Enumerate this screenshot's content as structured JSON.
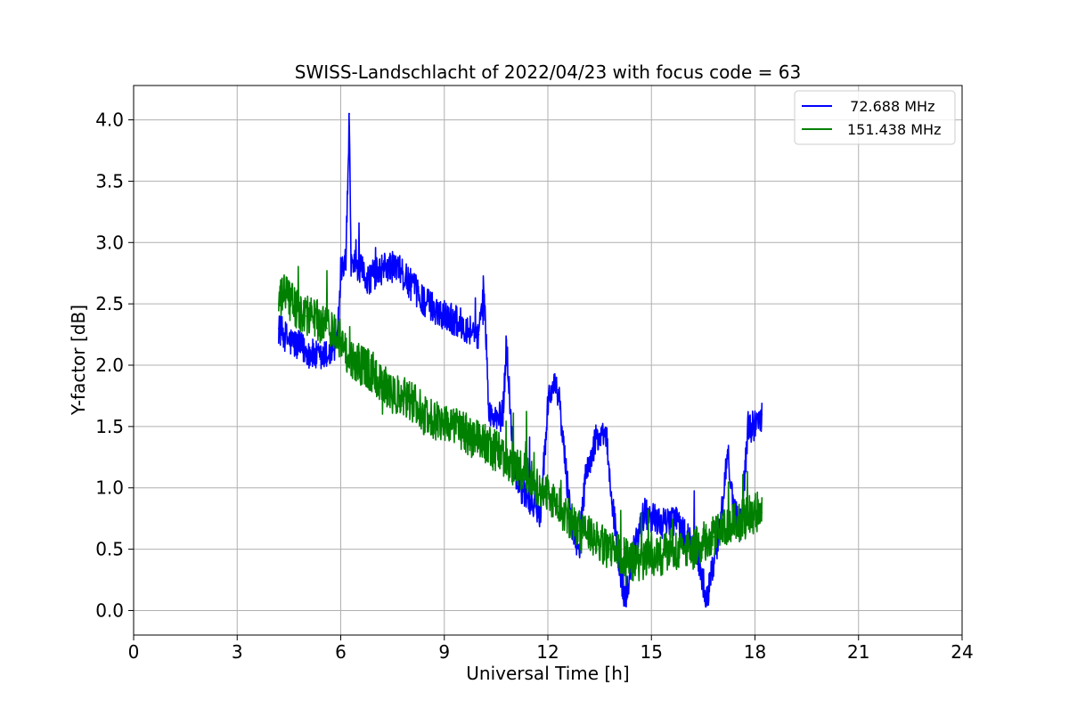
{
  "chart_data": {
    "type": "line",
    "title": "SWISS-Landschlacht of 2022/04/23 with focus code = 63",
    "xlabel": "Universal Time [h]",
    "ylabel": "Y-factor [dB]",
    "xlim": [
      0,
      24
    ],
    "ylim": [
      -0.2,
      4.28
    ],
    "xticks": [
      0,
      3,
      6,
      9,
      12,
      15,
      18,
      21,
      24
    ],
    "xtick_labels": [
      "0",
      "3",
      "6",
      "9",
      "12",
      "15",
      "18",
      "21",
      "24"
    ],
    "yticks": [
      0.0,
      0.5,
      1.0,
      1.5,
      2.0,
      2.5,
      3.0,
      3.5,
      4.0
    ],
    "ytick_labels": [
      "0.0",
      "0.5",
      "1.0",
      "1.5",
      "2.0",
      "2.5",
      "3.0",
      "3.5",
      "4.0"
    ],
    "grid": true,
    "legend_position": "top-right",
    "series": [
      {
        "name": "72.688 MHz",
        "legend_label": "  72.688 MHz",
        "color": "#0000ff",
        "x": [
          4.2,
          4.5,
          4.8,
          5.1,
          5.4,
          5.7,
          5.9,
          6.0,
          6.15,
          6.25,
          6.3,
          6.5,
          6.8,
          7.0,
          7.3,
          7.6,
          7.9,
          8.2,
          8.5,
          8.8,
          9.1,
          9.4,
          9.7,
          10.0,
          10.15,
          10.3,
          10.5,
          10.7,
          10.8,
          11.0,
          11.2,
          11.5,
          11.8,
          12.0,
          12.1,
          12.3,
          12.5,
          12.7,
          12.9,
          13.1,
          13.4,
          13.7,
          13.9,
          14.1,
          14.2,
          14.5,
          14.8,
          15.1,
          15.4,
          15.7,
          16.0,
          16.3,
          16.6,
          16.8,
          17.0,
          17.2,
          17.4,
          17.6,
          17.8,
          18.0,
          18.2
        ],
        "values": [
          2.3,
          2.2,
          2.15,
          2.1,
          2.05,
          2.1,
          2.2,
          2.8,
          2.9,
          4.05,
          2.85,
          2.8,
          2.7,
          2.75,
          2.8,
          2.8,
          2.7,
          2.6,
          2.5,
          2.45,
          2.4,
          2.35,
          2.3,
          2.25,
          2.6,
          1.6,
          1.55,
          1.6,
          2.2,
          1.2,
          1.0,
          0.9,
          0.8,
          1.7,
          1.8,
          1.8,
          1.2,
          0.7,
          0.5,
          1.1,
          1.4,
          1.4,
          0.8,
          0.3,
          0.05,
          0.5,
          0.8,
          0.75,
          0.7,
          0.75,
          0.6,
          0.5,
          0.1,
          0.4,
          0.7,
          1.3,
          0.8,
          0.7,
          1.5,
          1.5,
          1.6
        ]
      },
      {
        "name": "151.438 MHz",
        "legend_label": "151.438 MHz",
        "color": "#008000",
        "x": [
          4.2,
          4.4,
          4.6,
          4.8,
          5.0,
          5.2,
          5.4,
          5.6,
          5.8,
          6.0,
          6.3,
          6.6,
          6.9,
          7.2,
          7.5,
          7.8,
          8.1,
          8.4,
          8.7,
          9.0,
          9.3,
          9.6,
          9.9,
          10.2,
          10.5,
          10.8,
          11.1,
          11.4,
          11.7,
          12.0,
          12.3,
          12.6,
          12.9,
          13.2,
          13.5,
          13.8,
          14.1,
          14.4,
          14.7,
          15.0,
          15.3,
          15.6,
          15.9,
          16.2,
          16.5,
          16.8,
          17.1,
          17.4,
          17.7,
          18.0,
          18.2
        ],
        "values": [
          2.5,
          2.6,
          2.5,
          2.45,
          2.4,
          2.4,
          2.35,
          2.3,
          2.3,
          2.2,
          2.05,
          2.0,
          1.95,
          1.85,
          1.75,
          1.75,
          1.7,
          1.6,
          1.55,
          1.55,
          1.5,
          1.45,
          1.4,
          1.35,
          1.3,
          1.25,
          1.15,
          1.1,
          1.0,
          0.95,
          0.85,
          0.75,
          0.65,
          0.6,
          0.55,
          0.5,
          0.45,
          0.4,
          0.4,
          0.45,
          0.45,
          0.5,
          0.5,
          0.5,
          0.55,
          0.6,
          0.65,
          0.7,
          0.75,
          0.8,
          0.8
        ]
      }
    ]
  }
}
